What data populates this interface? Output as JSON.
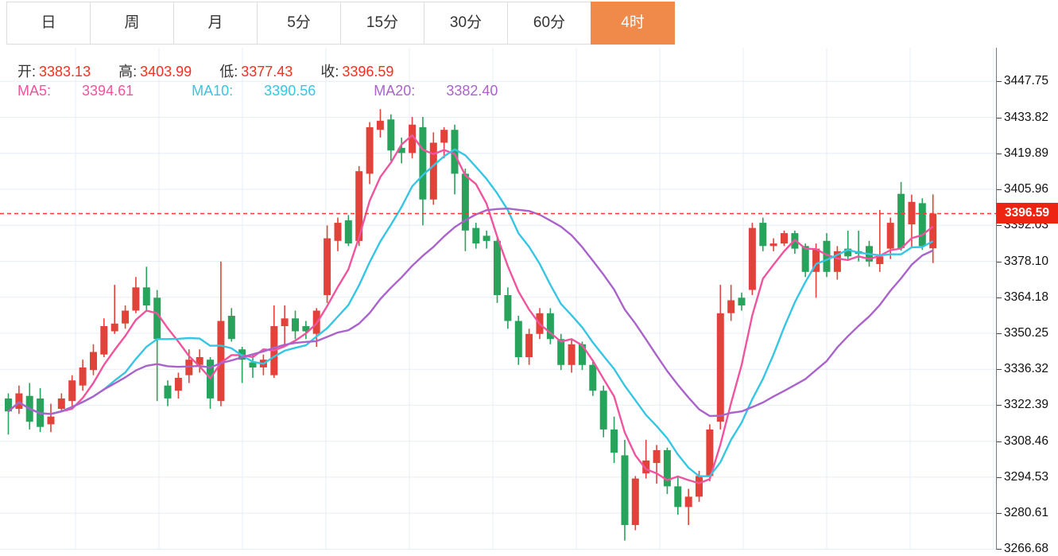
{
  "tabs": {
    "items": [
      {
        "label": "日",
        "active": false
      },
      {
        "label": "周",
        "active": false
      },
      {
        "label": "月",
        "active": false
      },
      {
        "label": "5分",
        "active": false
      },
      {
        "label": "15分",
        "active": false
      },
      {
        "label": "30分",
        "active": false
      },
      {
        "label": "60分",
        "active": false
      },
      {
        "label": "4时",
        "active": true
      }
    ]
  },
  "info": {
    "open_label": "开:",
    "open_value": "3383.13",
    "high_label": "高:",
    "high_value": "3403.99",
    "low_label": "低:",
    "low_value": "3377.43",
    "close_label": "收:",
    "close_value": "3396.59"
  },
  "ma": {
    "ma5_label": "MA5:",
    "ma5_value": "3394.61",
    "ma10_label": "MA10:",
    "ma10_value": "3390.56",
    "ma20_label": "MA20:",
    "ma20_value": "3382.40"
  },
  "price_line": {
    "label": "3396.59",
    "price": 3396.59
  },
  "colors": {
    "up": "#e3423a",
    "down": "#27a35c",
    "ma5": "#f0549e",
    "ma10": "#36c6e3",
    "ma20": "#aa63cb",
    "tab_active": "#ef8a4b",
    "price_tag_bg": "#ee2413",
    "value_red": "#f4301f",
    "grid": "#e7eef5",
    "dotted_line": "#ff3b2d"
  },
  "chart_data": {
    "type": "candlestick",
    "title": "",
    "grid": true,
    "legend_position": "top-left",
    "x_axis_labels": [],
    "y_axis_labels": [
      "3447.75",
      "3433.82",
      "3419.89",
      "3405.96",
      "3392.03",
      "3378.10",
      "3364.18",
      "3350.25",
      "3336.32",
      "3322.39",
      "3308.46",
      "3294.53",
      "3280.61",
      "3266.68"
    ],
    "ylim": [
      3266.68,
      3447.75
    ],
    "last_price": 3396.59,
    "up_means": "close >= open (red, Chinese convention)",
    "candles_ohlc": [
      [
        3325,
        3327,
        3311,
        3320
      ],
      [
        3321,
        3330,
        3319,
        3327
      ],
      [
        3326,
        3331,
        3313,
        3316
      ],
      [
        3325,
        3329,
        3312,
        3314
      ],
      [
        3315,
        3323,
        3312,
        3318
      ],
      [
        3321,
        3327,
        3320,
        3325
      ],
      [
        3324,
        3334,
        3322,
        3332
      ],
      [
        3330,
        3340,
        3328,
        3337
      ],
      [
        3336,
        3346,
        3334,
        3343
      ],
      [
        3342,
        3356,
        3341,
        3353
      ],
      [
        3351,
        3369,
        3350,
        3354
      ],
      [
        3354,
        3361,
        3352,
        3359
      ],
      [
        3359,
        3372,
        3358,
        3368
      ],
      [
        3368,
        3376,
        3359,
        3361
      ],
      [
        3364,
        3367,
        3324,
        3348
      ],
      [
        3330,
        3332,
        3322,
        3325
      ],
      [
        3328,
        3335,
        3325,
        3333
      ],
      [
        3334,
        3344,
        3331,
        3340
      ],
      [
        3338,
        3344,
        3335,
        3341
      ],
      [
        3340,
        3341,
        3321,
        3325
      ],
      [
        3324,
        3378,
        3322,
        3355
      ],
      [
        3357,
        3360,
        3347,
        3348
      ],
      [
        3344,
        3345,
        3331,
        3340
      ],
      [
        3339,
        3342,
        3333,
        3337
      ],
      [
        3337,
        3342,
        3334,
        3340
      ],
      [
        3334,
        3361,
        3333,
        3353
      ],
      [
        3353,
        3361,
        3345,
        3356
      ],
      [
        3356,
        3359,
        3348,
        3351
      ],
      [
        3353,
        3355,
        3348,
        3351
      ],
      [
        3350,
        3360,
        3345,
        3359
      ],
      [
        3365,
        3392,
        3362,
        3387
      ],
      [
        3386,
        3395,
        3382,
        3393
      ],
      [
        3394,
        3396,
        3384,
        3385
      ],
      [
        3386,
        3415,
        3384,
        3413
      ],
      [
        3412,
        3432,
        3408,
        3430
      ],
      [
        3429,
        3437,
        3426,
        3432.5
      ],
      [
        3433,
        3435,
        3417,
        3421
      ],
      [
        3422,
        3426,
        3416,
        3420
      ],
      [
        3420,
        3434,
        3418,
        3431
      ],
      [
        3430,
        3434,
        3392,
        3402
      ],
      [
        3402,
        3428,
        3400,
        3424
      ],
      [
        3424,
        3430,
        3418,
        3429
      ],
      [
        3429,
        3431,
        3404,
        3412
      ],
      [
        3412,
        3414,
        3382,
        3390
      ],
      [
        3391,
        3393,
        3383,
        3385
      ],
      [
        3388,
        3390,
        3383,
        3386
      ],
      [
        3386,
        3388,
        3362,
        3365
      ],
      [
        3365,
        3368,
        3352,
        3355
      ],
      [
        3355,
        3357,
        3338,
        3341
      ],
      [
        3341,
        3352,
        3338,
        3350
      ],
      [
        3350,
        3360,
        3348,
        3358
      ],
      [
        3358,
        3360,
        3346,
        3348
      ],
      [
        3348,
        3350,
        3336,
        3338
      ],
      [
        3338,
        3348,
        3335,
        3346
      ],
      [
        3346,
        3347,
        3336,
        3338
      ],
      [
        3338,
        3340,
        3326,
        3328
      ],
      [
        3328,
        3330,
        3310,
        3313
      ],
      [
        3313,
        3318,
        3300,
        3304
      ],
      [
        3303,
        3309,
        3270,
        3276
      ],
      [
        3276,
        3295,
        3274,
        3294
      ],
      [
        3296,
        3309,
        3294,
        3301
      ],
      [
        3300,
        3307,
        3292,
        3305
      ],
      [
        3305,
        3306,
        3288,
        3291
      ],
      [
        3291,
        3295,
        3280,
        3283
      ],
      [
        3283,
        3290,
        3276,
        3287
      ],
      [
        3287,
        3297,
        3285,
        3295
      ],
      [
        3295,
        3315,
        3293,
        3313
      ],
      [
        3316,
        3369,
        3313,
        3358
      ],
      [
        3358,
        3369,
        3355,
        3363
      ],
      [
        3364,
        3366,
        3359,
        3361
      ],
      [
        3367,
        3393,
        3365,
        3391
      ],
      [
        3393,
        3395,
        3382,
        3384
      ],
      [
        3384,
        3387,
        3382,
        3385
      ],
      [
        3385,
        3390,
        3384,
        3389
      ],
      [
        3389,
        3390,
        3381,
        3383
      ],
      [
        3384,
        3385,
        3372,
        3374
      ],
      [
        3374,
        3385,
        3364,
        3383
      ],
      [
        3386,
        3389,
        3372,
        3374
      ],
      [
        3374,
        3384,
        3371,
        3382
      ],
      [
        3383,
        3390,
        3379,
        3380
      ],
      [
        3382,
        3390,
        3378,
        3381
      ],
      [
        3384,
        3386,
        3376,
        3378
      ],
      [
        3377,
        3398,
        3374,
        3380
      ],
      [
        3383,
        3395,
        3379,
        3393
      ],
      [
        3404.2,
        3408.8,
        3382.2,
        3383.2
      ],
      [
        3392.4,
        3403.9,
        3383.2,
        3401.1
      ],
      [
        3400.6,
        3402.5,
        3382.5,
        3384
      ],
      [
        3383.13,
        3403.99,
        3377.43,
        3396.59
      ]
    ],
    "moving_averages": [
      {
        "name": "MA5",
        "window": 5,
        "color": "#f0549e",
        "current": 3394.61
      },
      {
        "name": "MA10",
        "window": 10,
        "color": "#36c6e3",
        "current": 3390.56
      },
      {
        "name": "MA20",
        "window": 20,
        "color": "#aa63cb",
        "current": 3382.4
      }
    ]
  }
}
